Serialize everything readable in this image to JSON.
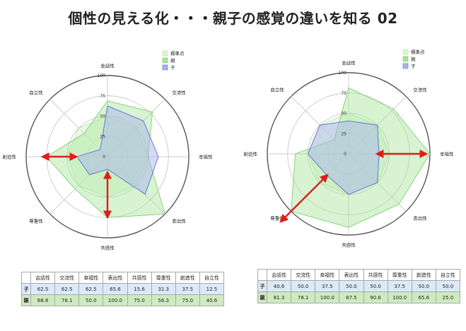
{
  "title": "個性の見える化・・・親子の感覚の違いを知る 02",
  "colors": {
    "standard": "#d9f5d0",
    "parent": "#a6e598",
    "child": "#aab4ee",
    "child_stroke": "#5a6ed6",
    "arrow": "#e01c1c"
  },
  "chart_data": [
    {
      "type": "radar",
      "title": "",
      "axes": [
        "会話性",
        "交流性",
        "幸福性",
        "表出性",
        "共感性",
        "尊重性",
        "創造性",
        "自立性"
      ],
      "ticks": [
        "0",
        "25",
        "50",
        "75",
        "100"
      ],
      "rlim": [
        0,
        100
      ],
      "legend": [
        "標準点",
        "親",
        "子"
      ],
      "legend_position": "top-right",
      "series": [
        {
          "name": "標準点",
          "values": [
            50,
            50,
            50,
            50,
            50,
            50,
            50,
            50
          ]
        },
        {
          "name": "親",
          "values": [
            68.8,
            78.1,
            50.0,
            100.0,
            75.0,
            56.3,
            75.0,
            40.6
          ]
        },
        {
          "name": "子",
          "values": [
            62.5,
            62.5,
            62.5,
            65.6,
            15.6,
            31.3,
            37.5,
            12.5
          ]
        }
      ],
      "annotations": [
        "red double arrow on 創造性 axis",
        "red double arrow on 共感性 axis"
      ]
    },
    {
      "type": "radar",
      "title": "",
      "axes": [
        "会話性",
        "交流性",
        "幸福性",
        "表出性",
        "共感性",
        "尊重性",
        "創造性",
        "自立性"
      ],
      "ticks": [
        "0",
        "25",
        "50",
        "75",
        "100"
      ],
      "rlim": [
        0,
        100
      ],
      "legend": [
        "標準点",
        "親",
        "子"
      ],
      "legend_position": "top-right",
      "series": [
        {
          "name": "標準点",
          "values": [
            50,
            50,
            50,
            50,
            50,
            50,
            50,
            50
          ]
        },
        {
          "name": "親",
          "values": [
            81.3,
            78.1,
            100.0,
            87.5,
            90.6,
            100.0,
            65.6,
            25.0
          ]
        },
        {
          "name": "子",
          "values": [
            40.6,
            50.0,
            37.5,
            50.0,
            50.0,
            37.5,
            50.0,
            50.0
          ]
        }
      ],
      "annotations": [
        "red double arrow on 幸福性 axis",
        "red double arrow on 尊重性 axis"
      ]
    }
  ],
  "tables": [
    {
      "headers": [
        "",
        "会話性",
        "交流性",
        "幸福性",
        "表出性",
        "共感性",
        "尊重性",
        "創造性",
        "自立性"
      ],
      "rows": [
        {
          "label": "子",
          "values": [
            "62.5",
            "62.5",
            "62.5",
            "65.6",
            "15.6",
            "31.3",
            "37.5",
            "12.5"
          ]
        },
        {
          "label": "親",
          "values": [
            "68.8",
            "78.1",
            "50.0",
            "100.0",
            "75.0",
            "56.3",
            "75.0",
            "40.6"
          ]
        }
      ]
    },
    {
      "headers": [
        "",
        "会話性",
        "交流性",
        "幸福性",
        "表出性",
        "共感性",
        "尊重性",
        "創造性",
        "自立性"
      ],
      "rows": [
        {
          "label": "子",
          "values": [
            "40.6",
            "50.0",
            "37.5",
            "50.0",
            "50.0",
            "37.5",
            "50.0",
            "50.0"
          ]
        },
        {
          "label": "親",
          "values": [
            "81.3",
            "78.1",
            "100.0",
            "87.5",
            "90.6",
            "100.0",
            "65.6",
            "25.0"
          ]
        }
      ]
    }
  ]
}
